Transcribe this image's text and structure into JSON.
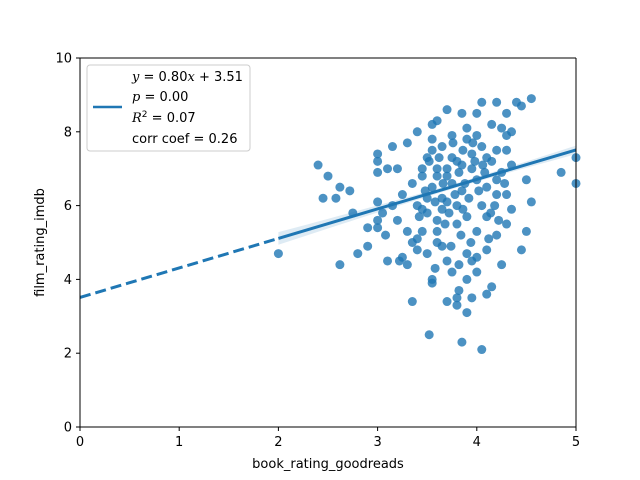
{
  "chart_data": {
    "type": "scatter",
    "title": "",
    "xlabel": "book_rating_goodreads",
    "ylabel": "film_rating_imdb",
    "xlim": [
      0,
      5
    ],
    "ylim": [
      0,
      10
    ],
    "xticks": [
      "0",
      "1",
      "2",
      "3",
      "4",
      "5"
    ],
    "yticks": [
      "0",
      "2",
      "4",
      "6",
      "8",
      "10"
    ],
    "grid": false,
    "legend_position": "upper-left",
    "color": "#1f77b4",
    "regression": {
      "slope": 0.8,
      "intercept": 3.51,
      "fit_x_range": [
        2.0,
        5.0
      ],
      "extrapolated_style": "dashed"
    },
    "legend": {
      "line1": {
        "y": "y",
        "eq": " = 0.80",
        "x": "x",
        "rest": " + 3.51"
      },
      "line2": {
        "p": "p",
        "val": " = 0.00"
      },
      "line3": {
        "r": "R",
        "sup": "2",
        "val": " = 0.07"
      },
      "line4": "corr coef = 0.26"
    },
    "points": [
      [
        2.0,
        4.7
      ],
      [
        2.4,
        7.1
      ],
      [
        2.45,
        6.2
      ],
      [
        2.5,
        6.8
      ],
      [
        2.58,
        6.2
      ],
      [
        2.62,
        6.5
      ],
      [
        2.62,
        4.4
      ],
      [
        2.72,
        6.4
      ],
      [
        2.75,
        5.8
      ],
      [
        2.8,
        4.7
      ],
      [
        2.9,
        5.4
      ],
      [
        2.9,
        4.9
      ],
      [
        3.0,
        7.4
      ],
      [
        3.0,
        6.1
      ],
      [
        3.0,
        5.6
      ],
      [
        3.0,
        5.4
      ],
      [
        3.0,
        7.2
      ],
      [
        3.0,
        6.9
      ],
      [
        3.05,
        5.8
      ],
      [
        3.08,
        5.2
      ],
      [
        3.1,
        4.5
      ],
      [
        3.1,
        7.0
      ],
      [
        3.15,
        7.6
      ],
      [
        3.15,
        6.0
      ],
      [
        3.2,
        7.0
      ],
      [
        3.22,
        4.5
      ],
      [
        3.25,
        4.6
      ],
      [
        3.3,
        4.4
      ],
      [
        3.3,
        7.7
      ],
      [
        3.35,
        3.4
      ],
      [
        3.4,
        8.0
      ],
      [
        3.4,
        5.1
      ],
      [
        3.45,
        5.9
      ],
      [
        3.5,
        7.3
      ],
      [
        3.52,
        2.5
      ],
      [
        3.55,
        4.0
      ],
      [
        3.55,
        3.9
      ],
      [
        3.55,
        8.2
      ],
      [
        3.6,
        8.3
      ],
      [
        3.65,
        4.9
      ],
      [
        3.7,
        3.4
      ],
      [
        3.7,
        8.6
      ],
      [
        3.75,
        7.9
      ],
      [
        3.8,
        3.5
      ],
      [
        3.8,
        3.3
      ],
      [
        3.82,
        3.7
      ],
      [
        3.85,
        2.3
      ],
      [
        3.85,
        8.5
      ],
      [
        3.9,
        3.1
      ],
      [
        3.95,
        3.5
      ],
      [
        3.95,
        4.5
      ],
      [
        4.0,
        8.5
      ],
      [
        4.05,
        2.1
      ],
      [
        4.05,
        8.8
      ],
      [
        4.1,
        3.6
      ],
      [
        4.15,
        3.8
      ],
      [
        4.2,
        8.8
      ],
      [
        4.25,
        4.4
      ],
      [
        4.3,
        8.5
      ],
      [
        4.35,
        8.0
      ],
      [
        4.4,
        8.8
      ],
      [
        4.45,
        8.7
      ],
      [
        4.5,
        5.3
      ],
      [
        4.55,
        8.9
      ],
      [
        4.55,
        6.1
      ],
      [
        4.45,
        4.8
      ],
      [
        4.3,
        5.5
      ],
      [
        4.5,
        6.7
      ],
      [
        4.85,
        6.9
      ],
      [
        5.0,
        7.3
      ],
      [
        5.0,
        6.6
      ],
      [
        3.45,
        6.8
      ],
      [
        3.55,
        7.5
      ],
      [
        3.6,
        5.6
      ],
      [
        3.6,
        5.0
      ],
      [
        3.7,
        4.5
      ],
      [
        3.75,
        4.2
      ],
      [
        3.9,
        4.0
      ],
      [
        4.0,
        4.2
      ],
      [
        4.1,
        4.8
      ],
      [
        4.2,
        5.2
      ],
      [
        4.35,
        5.9
      ],
      [
        4.3,
        7.9
      ],
      [
        4.25,
        8.1
      ],
      [
        3.5,
        6.2
      ],
      [
        3.35,
        6.6
      ],
      [
        3.25,
        6.3
      ],
      [
        3.2,
        5.6
      ],
      [
        3.35,
        5.0
      ],
      [
        3.65,
        5.9
      ],
      [
        3.8,
        5.5
      ],
      [
        3.9,
        7.8
      ],
      [
        3.95,
        7.0
      ],
      [
        4.1,
        6.5
      ],
      [
        4.15,
        7.2
      ],
      [
        4.05,
        6.0
      ],
      [
        3.85,
        6.4
      ],
      [
        3.7,
        6.8
      ],
      [
        3.75,
        7.3
      ],
      [
        3.6,
        7.0
      ],
      [
        3.55,
        6.5
      ],
      [
        3.5,
        5.8
      ],
      [
        3.45,
        5.3
      ],
      [
        3.65,
        6.2
      ],
      [
        3.8,
        6.0
      ],
      [
        3.9,
        5.7
      ],
      [
        4.0,
        5.3
      ],
      [
        4.1,
        5.7
      ],
      [
        4.2,
        6.3
      ],
      [
        4.25,
        6.9
      ],
      [
        4.2,
        7.5
      ],
      [
        4.05,
        7.6
      ],
      [
        3.95,
        7.4
      ],
      [
        3.85,
        7.1
      ],
      [
        3.75,
        6.6
      ],
      [
        3.7,
        6.1
      ],
      [
        3.6,
        5.3
      ],
      [
        3.5,
        4.7
      ],
      [
        3.4,
        4.8
      ],
      [
        3.3,
        5.3
      ],
      [
        3.4,
        6.0
      ],
      [
        3.45,
        7.0
      ],
      [
        3.55,
        7.8
      ],
      [
        3.65,
        7.6
      ],
      [
        3.9,
        8.1
      ],
      [
        4.0,
        7.9
      ],
      [
        4.1,
        7.3
      ],
      [
        4.2,
        6.7
      ],
      [
        4.3,
        6.3
      ],
      [
        4.35,
        7.1
      ],
      [
        4.3,
        7.5
      ],
      [
        4.15,
        8.2
      ],
      [
        4.0,
        6.7
      ],
      [
        3.88,
        6.6
      ],
      [
        3.82,
        6.9
      ],
      [
        3.78,
        6.3
      ],
      [
        3.72,
        5.8
      ],
      [
        3.68,
        5.5
      ],
      [
        3.92,
        6.2
      ],
      [
        4.02,
        6.4
      ],
      [
        4.08,
        6.9
      ],
      [
        3.98,
        7.2
      ],
      [
        3.86,
        7.5
      ],
      [
        3.76,
        7.7
      ],
      [
        3.66,
        6.6
      ],
      [
        3.58,
        6.1
      ],
      [
        3.62,
        7.3
      ],
      [
        3.84,
        5.2
      ],
      [
        3.94,
        5.0
      ],
      [
        4.12,
        5.1
      ],
      [
        3.74,
        4.9
      ],
      [
        3.9,
        4.7
      ],
      [
        4.18,
        6.0
      ],
      [
        4.28,
        6.6
      ],
      [
        3.48,
        6.4
      ],
      [
        3.42,
        5.7
      ],
      [
        3.52,
        7.2
      ],
      [
        3.96,
        7.7
      ],
      [
        4.06,
        7.1
      ],
      [
        3.8,
        7.2
      ],
      [
        3.7,
        7.0
      ],
      [
        3.6,
        6.8
      ],
      [
        3.86,
        5.9
      ],
      [
        4.14,
        5.8
      ],
      [
        4.22,
        5.6
      ],
      [
        3.82,
        4.4
      ],
      [
        4.0,
        4.6
      ],
      [
        3.58,
        4.3
      ]
    ]
  }
}
